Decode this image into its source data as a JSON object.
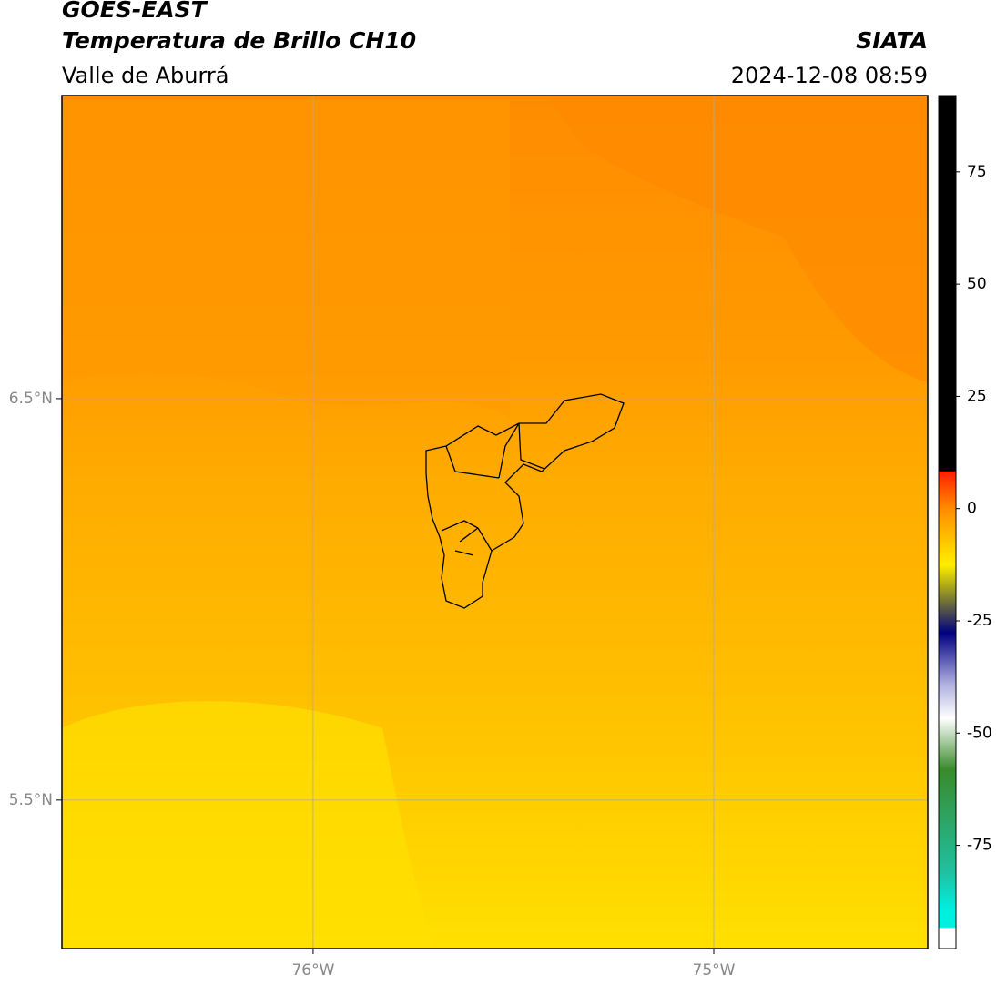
{
  "header": {
    "title": "GOES-EAST",
    "subtitle": "Temperatura de Brillo CH10",
    "region": "Valle de Aburrá",
    "source": "SIATA",
    "timestamp": "2024-12-08 08:59"
  },
  "map": {
    "lonlim": [
      -76.627,
      -74.466
    ],
    "latlim": [
      5.13,
      7.255
    ],
    "lonticks": [
      {
        "value": -76,
        "label": "76°W"
      },
      {
        "value": -75,
        "label": "75°W"
      }
    ],
    "latticks": [
      {
        "value": 6.5,
        "label": "6.5°N"
      },
      {
        "value": 5.5,
        "label": "5.5°N"
      }
    ]
  },
  "colorbar": {
    "lim": [
      -98,
      92
    ],
    "ticks": [
      75,
      50,
      25,
      0,
      -25,
      -50,
      -75
    ]
  }
}
